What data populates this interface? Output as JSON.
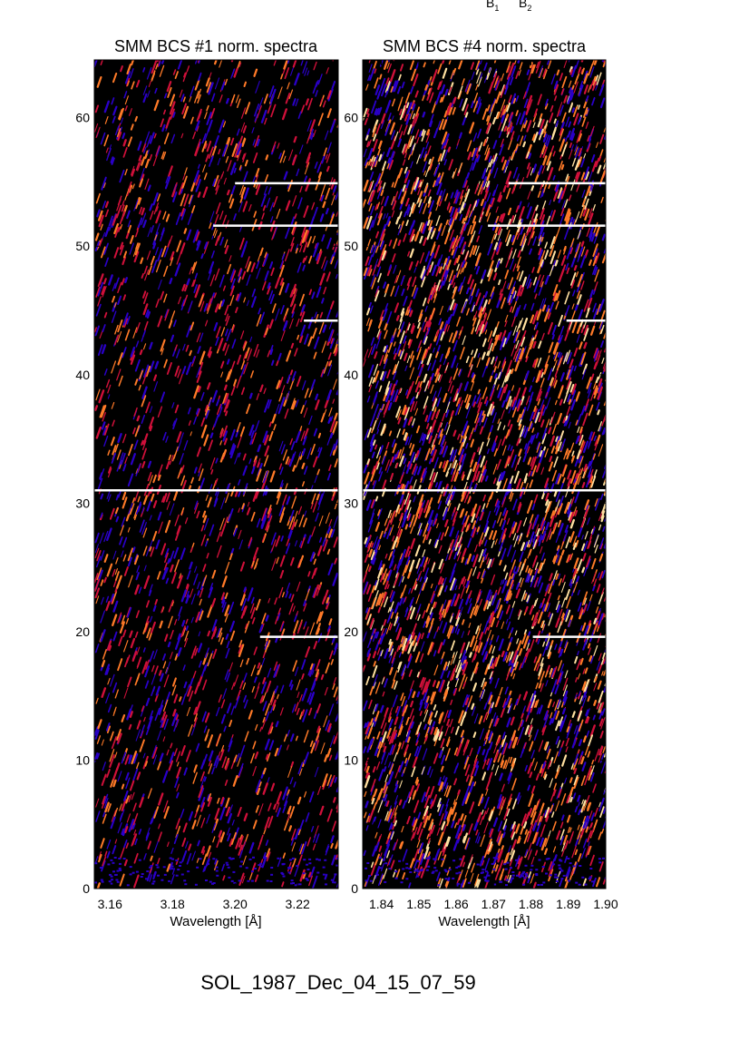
{
  "top_labels": {
    "b1": {
      "base": "B",
      "sub": "1"
    },
    "b2": {
      "base": "B",
      "sub": "2"
    }
  },
  "footer_label": "SOL_1987_Dec_04_15_07_59",
  "chart_data": [
    {
      "type": "heatmap",
      "title": "SMM BCS #1 norm. spectra",
      "xlabel": "Wavelength [Å]",
      "ylabel": "",
      "xlim": [
        3.155,
        3.233
      ],
      "ylim": [
        0,
        64.5
      ],
      "x_ticks": [
        3.16,
        3.18,
        3.2,
        3.22
      ],
      "x_tick_labels": [
        "3.16",
        "3.18",
        "3.20",
        "3.22"
      ],
      "y_ticks": [
        0,
        10,
        20,
        30,
        40,
        50,
        60
      ],
      "y_tick_labels": [
        "0",
        "10",
        "20",
        "30",
        "40",
        "50",
        "60"
      ],
      "colormap": [
        "#000000",
        "#2a00c8",
        "#d0103a",
        "#ff7a28",
        "#ffe0a0"
      ],
      "background": "#000000",
      "intensity_by_y": [
        [
          0,
          0.25
        ],
        [
          30.5,
          0.3
        ],
        [
          31.5,
          0.28
        ],
        [
          64.5,
          0.28
        ]
      ],
      "gap_lines": [
        {
          "y": 31.0,
          "x_start": 3.155
        },
        {
          "y": 54.9,
          "x_start": 3.2
        },
        {
          "y": 51.6,
          "x_start": 3.193
        },
        {
          "y": 44.2,
          "x_start": 3.222
        },
        {
          "y": 19.6,
          "x_start": 3.208
        }
      ]
    },
    {
      "type": "heatmap",
      "title": "SMM BCS #4 norm. spectra",
      "xlabel": "Wavelength [Å]",
      "ylabel": "",
      "xlim": [
        1.835,
        1.9
      ],
      "ylim": [
        0,
        64.5
      ],
      "x_ticks": [
        1.84,
        1.85,
        1.86,
        1.87,
        1.88,
        1.89,
        1.9
      ],
      "x_tick_labels": [
        "1.84",
        "1.85",
        "1.86",
        "1.87",
        "1.88",
        "1.89",
        "1.90"
      ],
      "y_ticks": [
        0,
        10,
        20,
        30,
        40,
        50,
        60
      ],
      "y_tick_labels": [
        "0",
        "10",
        "20",
        "30",
        "40",
        "50",
        "60"
      ],
      "colormap": [
        "#000000",
        "#2a00c8",
        "#d0103a",
        "#ff7a28",
        "#ffe0a0"
      ],
      "background": "#000000",
      "intensity_by_y": [
        [
          0,
          0.45
        ],
        [
          30.5,
          0.6
        ],
        [
          31.5,
          0.55
        ],
        [
          64.5,
          0.5
        ]
      ],
      "gap_lines": [
        {
          "y": 31.0,
          "x_start": 1.835
        },
        {
          "y": 54.9,
          "x_start": 1.874
        },
        {
          "y": 51.6,
          "x_start": 1.8685
        },
        {
          "y": 44.2,
          "x_start": 1.8895
        },
        {
          "y": 19.6,
          "x_start": 1.8805
        }
      ]
    }
  ]
}
